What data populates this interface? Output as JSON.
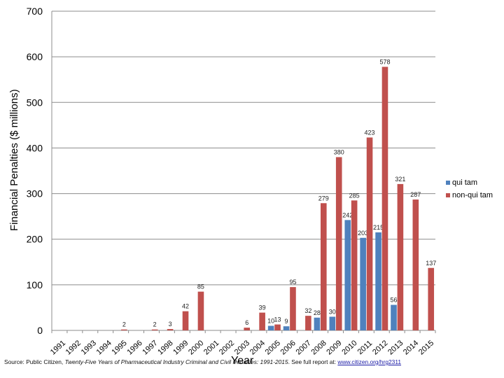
{
  "chart_data": {
    "type": "bar",
    "categories": [
      "1991",
      "1992",
      "1993",
      "1994",
      "1995",
      "1996",
      "1997",
      "1998",
      "1999",
      "2000",
      "2001",
      "2002",
      "2003",
      "2004",
      "2005",
      "2006",
      "2007",
      "2008",
      "2009",
      "2010",
      "2011",
      "2012",
      "2013",
      "2014",
      "2015"
    ],
    "series": [
      {
        "name": "qui tam",
        "color": "#4f81bd",
        "values": [
          null,
          null,
          null,
          null,
          null,
          null,
          null,
          null,
          null,
          null,
          null,
          null,
          null,
          null,
          10,
          9,
          null,
          28,
          30,
          242,
          203,
          215,
          56,
          null,
          null
        ]
      },
      {
        "name": "non-qui tam",
        "color": "#c0504d",
        "values": [
          null,
          null,
          null,
          null,
          2,
          null,
          2,
          3,
          42,
          85,
          null,
          null,
          6,
          39,
          13,
          95,
          32,
          279,
          380,
          285,
          423,
          578,
          321,
          287,
          137
        ]
      }
    ],
    "data_labels": {
      "qui tam": [
        "",
        "",
        "",
        "",
        "",
        "",
        "",
        "",
        "",
        "",
        "",
        "",
        "",
        "",
        "10",
        "9",
        "",
        "28",
        "30",
        "242",
        "203",
        "215",
        "56",
        "",
        ""
      ],
      "non-qui tam": [
        "",
        "",
        "",
        "",
        "2",
        "",
        "2",
        "3",
        "42",
        "85",
        "",
        "",
        "6",
        "39",
        "13",
        "95",
        "32",
        "279",
        "380",
        "285",
        "423",
        "578",
        "321",
        "287",
        "137"
      ]
    },
    "ylabel": "Financial Penalties ($ millions)",
    "xlabel": "Year",
    "ylim": [
      0,
      700
    ],
    "yticks": [
      0,
      100,
      200,
      300,
      400,
      500,
      600,
      700
    ],
    "ytick_labels": [
      "0",
      "100",
      "200",
      "300",
      "400",
      "500",
      "600",
      "700"
    ],
    "grid": "horizontal",
    "legend_position": "right"
  },
  "source": {
    "prefix": "Source: Public Citizen, ",
    "title": "Twenty-Five Years of Pharmaceutical Industry Criminal and Civil Penalties: 1991-2015",
    "suffix": ". See full report at: ",
    "link": "www.citizen.org/hrg2311"
  }
}
